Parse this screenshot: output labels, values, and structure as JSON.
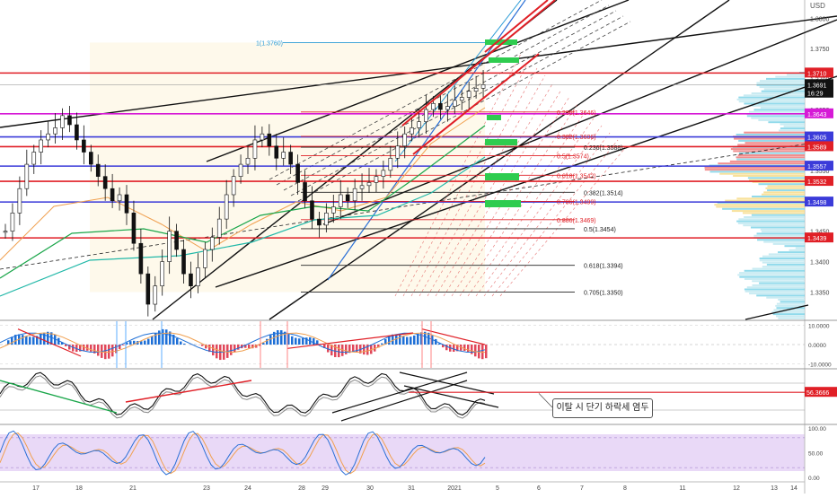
{
  "currency_label": "USD",
  "annotation_note": "이탈 시 단기 하락세 염두",
  "chart_data": [
    {
      "type": "candlestick",
      "name": "price",
      "ylim": [
        1.3305,
        1.383
      ],
      "y_ticks": [
        "1.3800",
        "1.3750",
        "1.3700",
        "1.3650",
        "1.3600",
        "1.3550",
        "1.3500",
        "1.3450",
        "1.3400",
        "1.3350"
      ],
      "x_ticks": [
        {
          "label": "17",
          "day": 0
        },
        {
          "label": "18",
          "day": 1
        },
        {
          "label": "21",
          "day": 2
        },
        {
          "label": "23",
          "day": 4
        },
        {
          "label": "24",
          "day": 5
        },
        {
          "label": "28",
          "day": 6
        },
        {
          "label": "29",
          "day": 7
        },
        {
          "label": "30",
          "day": 8
        },
        {
          "label": "31",
          "day": 9
        },
        {
          "label": "2021",
          "day": 10
        },
        {
          "label": "5",
          "day": 11
        },
        {
          "label": "6",
          "day": 12
        },
        {
          "label": "7",
          "day": 13
        },
        {
          "label": "8",
          "day": 14
        },
        {
          "label": "11",
          "day": 15
        },
        {
          "label": "12",
          "day": 16
        },
        {
          "label": "13",
          "day": 17
        },
        {
          "label": "14",
          "day": 18
        }
      ],
      "closes": [
        1.345,
        1.348,
        1.352,
        1.356,
        1.358,
        1.36,
        1.361,
        1.362,
        1.364,
        1.3625,
        1.36,
        1.358,
        1.356,
        1.354,
        1.352,
        1.35,
        1.351,
        1.348,
        1.343,
        1.338,
        1.333,
        1.336,
        1.34,
        1.345,
        1.342,
        1.338,
        1.336,
        1.339,
        1.342,
        1.344,
        1.347,
        1.351,
        1.354,
        1.356,
        1.357,
        1.36,
        1.361,
        1.359,
        1.357,
        1.358,
        1.356,
        1.353,
        1.35,
        1.347,
        1.346,
        1.348,
        1.349,
        1.351,
        1.35,
        1.352,
        1.3525,
        1.353,
        1.354,
        1.355,
        1.357,
        1.359,
        1.361,
        1.362,
        1.363,
        1.365,
        1.366,
        1.365,
        1.3655,
        1.3665,
        1.367,
        1.368,
        1.3685,
        1.3691
      ],
      "price_labels": [
        {
          "text": "1.3710",
          "value": 1.371,
          "color": "#e01f26"
        },
        {
          "text": "1.3691",
          "value": 1.3691,
          "color": "#111111"
        },
        {
          "text": "16:29",
          "value": 1.3677,
          "color": "#111111"
        },
        {
          "text": "1.3643",
          "value": 1.3643,
          "color": "#d61ad6"
        },
        {
          "text": "1.3605",
          "value": 1.3605,
          "color": "#3b3bd9"
        },
        {
          "text": "1.3589",
          "value": 1.3589,
          "color": "#e01f26"
        },
        {
          "text": "1.3557",
          "value": 1.3557,
          "color": "#3b3bd9"
        },
        {
          "text": "1.3532",
          "value": 1.3532,
          "color": "#e01f26"
        },
        {
          "text": "1.3498",
          "value": 1.3498,
          "color": "#3b3bd9"
        },
        {
          "text": "1.3439",
          "value": 1.3439,
          "color": "#e01f26"
        }
      ],
      "horizontal_levels": [
        {
          "value": 1.371,
          "color": "#e01f26"
        },
        {
          "value": 1.3643,
          "color": "#d61ad6"
        },
        {
          "value": 1.3605,
          "color": "#3b3bd9"
        },
        {
          "value": 1.3589,
          "color": "#e01f26"
        },
        {
          "value": 1.3557,
          "color": "#3b3bd9"
        },
        {
          "value": 1.3532,
          "color": "#e01f26"
        },
        {
          "value": 1.3498,
          "color": "#3b3bd9"
        },
        {
          "value": 1.3439,
          "color": "#e01f26"
        }
      ],
      "fib_labels": [
        {
          "text": "1(1.3760)",
          "value": 1.376,
          "color": "#2a9bd6"
        },
        {
          "text": "0.236(1.3646)",
          "value": 1.3646,
          "color": "#e01f26"
        },
        {
          "text": "0.382(1.3606)",
          "value": 1.3606,
          "color": "#e01f26"
        },
        {
          "text": "0.236(1.3588)",
          "value": 1.3588,
          "color": "#222222"
        },
        {
          "text": "0.5(1.3574)",
          "value": 1.3574,
          "color": "#e01f26"
        },
        {
          "text": "0.618(1.3542)",
          "value": 1.3542,
          "color": "#e01f26"
        },
        {
          "text": "0.382(1.3514)",
          "value": 1.3514,
          "color": "#222222"
        },
        {
          "text": "0.786(1.3499)",
          "value": 1.3499,
          "color": "#e01f26"
        },
        {
          "text": "0.886(1.3469)",
          "value": 1.3469,
          "color": "#e01f26"
        },
        {
          "text": "0.5(1.3454)",
          "value": 1.3454,
          "color": "#222222"
        },
        {
          "text": "0.618(1.3394)",
          "value": 1.3394,
          "color": "#222222"
        },
        {
          "text": "0.705(1.3350)",
          "value": 1.335,
          "color": "#222222"
        }
      ]
    },
    {
      "type": "histogram",
      "name": "macd",
      "ylim": [
        -12,
        12
      ],
      "y_ticks": [
        "10.0000",
        "0.0000",
        "-10.0000"
      ]
    },
    {
      "type": "line",
      "name": "oscillator",
      "value_label": "56.3666"
    },
    {
      "type": "line",
      "name": "stoch-rsi",
      "ylim": [
        -5,
        105
      ],
      "y_ticks": [
        "100.00",
        "50.00",
        "0.00"
      ]
    }
  ]
}
